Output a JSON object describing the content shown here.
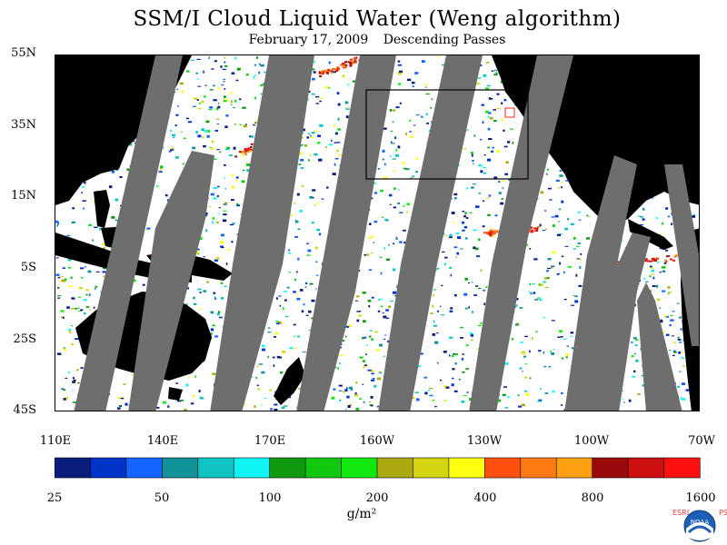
{
  "title": "SSM/I Cloud Liquid Water (Weng algorithm)",
  "subtitle": {
    "date": "February 17, 2009",
    "passes": "Descending Passes"
  },
  "map": {
    "lat_ticks": [
      "55N",
      "35N",
      "15N",
      "5S",
      "25S",
      "45S"
    ],
    "lon_ticks": [
      "110E",
      "140E",
      "170E",
      "160W",
      "130W",
      "100W",
      "70W"
    ],
    "land_color": "#000000",
    "gap_color": "#6e6e6e",
    "ocean_color": "#ffffff"
  },
  "colorbar": {
    "colors": [
      "#0a1c7c",
      "#0033c8",
      "#1464ff",
      "#12939a",
      "#10c4c4",
      "#10f4f4",
      "#0e9a0e",
      "#10c810",
      "#10e810",
      "#aaaa10",
      "#d4d410",
      "#ffff10",
      "#ff5010",
      "#ff7a10",
      "#ffa010",
      "#9a0a0a",
      "#cc1010",
      "#ff1010"
    ],
    "labels": [
      "25",
      "50",
      "100",
      "200",
      "400",
      "800",
      "1600"
    ],
    "units": "g/m²"
  },
  "logo": {
    "text": "NOAA",
    "left_letters": "ESRL",
    "right_letters": "PSD"
  }
}
